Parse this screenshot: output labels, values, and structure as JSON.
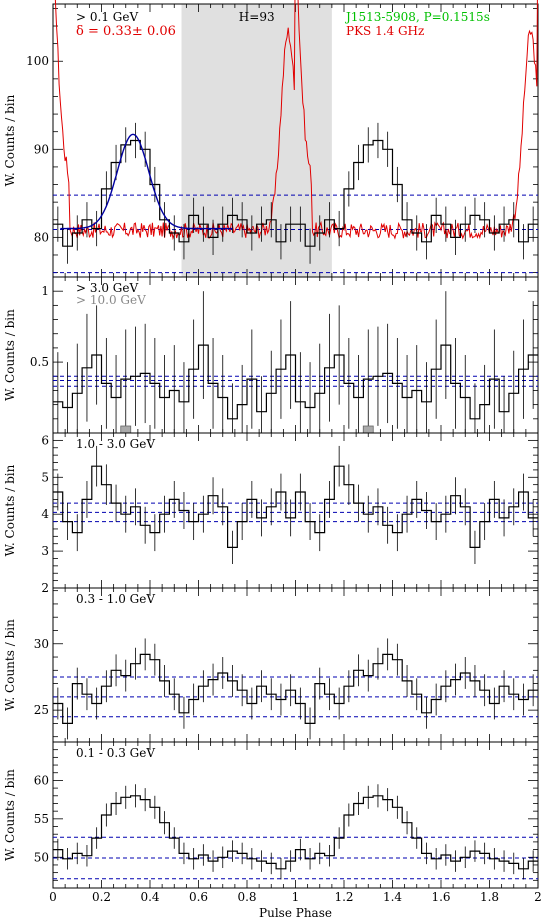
{
  "figure": {
    "x_axis_label": "Pulse Phase",
    "y_axis_label": "W. Counts / bin"
  },
  "chart_data": [
    {
      "type": "line",
      "panel": "top",
      "labels": {
        "energy": "> 0.1 GeV",
        "delta": "δ = 0.33± 0.06",
        "htest": "H=93",
        "pulsar": "J1513-5908, P=0.1515s",
        "radio": "PKS 1.4 GHz"
      },
      "colors": {
        "energy": "#000000",
        "delta": "#e00000",
        "pulsar": "#00c000",
        "radio": "#e00000",
        "fit": "#0000a0",
        "shade": "#e0e0e0",
        "dashed": "#0000b0"
      },
      "xlim": [
        0,
        2
      ],
      "ylim": [
        75.5,
        106.5
      ],
      "yticks": [
        80,
        90,
        100
      ],
      "shaded_range": [
        0.53,
        1.15
      ],
      "dashed_levels": [
        76.0,
        80.9,
        84.8
      ],
      "x": [
        0.0,
        0.04,
        0.08,
        0.12,
        0.16,
        0.2,
        0.24,
        0.28,
        0.32,
        0.36,
        0.4,
        0.44,
        0.48,
        0.52,
        0.56,
        0.6,
        0.64,
        0.68,
        0.72,
        0.76,
        0.8,
        0.84,
        0.88,
        0.92,
        0.96
      ],
      "values": [
        81.5,
        79.0,
        80.5,
        82.0,
        81.0,
        85.5,
        88.5,
        90.5,
        91.0,
        90.0,
        86.0,
        82.0,
        80.5,
        79.5,
        82.5,
        81.5,
        80.0,
        81.5,
        82.5,
        82.0,
        80.5,
        81.5,
        82.0,
        79.5,
        81.5
      ],
      "errors": [
        2,
        2,
        2,
        2,
        2,
        2,
        2,
        2,
        2,
        2,
        2,
        2,
        2,
        2,
        2,
        2,
        2,
        2,
        2,
        2,
        2,
        2,
        2,
        2,
        2
      ],
      "radio": {
        "base": 80.8,
        "noise": 0.9,
        "peak_height": 22.5,
        "peak_center": 0.97,
        "peak_width": 0.03,
        "ramp": 0.05,
        "ramp_height": 21.5
      },
      "fit": {
        "base": 81.0,
        "amplitude": 10.7,
        "center": 0.33,
        "sigma": 0.065,
        "start": 0.03,
        "end": 0.74
      }
    },
    {
      "type": "line",
      "panel": "3 GeV",
      "labels": {
        "energy": "> 3.0 GeV",
        "energy2": "> 10.0 GeV"
      },
      "colors": {
        "energy2": "#888888"
      },
      "xlim": [
        0,
        2
      ],
      "ylim": [
        0,
        1.1
      ],
      "yticks": [
        0.5,
        1
      ],
      "dashed_levels": [
        0.33,
        0.37,
        0.4
      ],
      "x": [
        0.0,
        0.04,
        0.08,
        0.12,
        0.16,
        0.2,
        0.24,
        0.28,
        0.32,
        0.36,
        0.4,
        0.44,
        0.48,
        0.52,
        0.56,
        0.6,
        0.64,
        0.68,
        0.72,
        0.76,
        0.8,
        0.84,
        0.88,
        0.92,
        0.96
      ],
      "values": [
        0.22,
        0.18,
        0.28,
        0.46,
        0.55,
        0.35,
        0.25,
        0.38,
        0.4,
        0.42,
        0.35,
        0.25,
        0.3,
        0.22,
        0.45,
        0.62,
        0.35,
        0.25,
        0.1,
        0.2,
        0.38,
        0.15,
        0.28,
        0.45,
        0.55
      ],
      "errors": [
        0.35,
        0.32,
        0.35,
        0.38,
        0.35,
        0.32,
        0.3,
        0.35,
        0.35,
        0.35,
        0.32,
        0.3,
        0.32,
        0.28,
        0.35,
        0.38,
        0.32,
        0.3,
        0.25,
        0.28,
        0.35,
        0.25,
        0.3,
        0.35,
        0.38
      ],
      "tev_markers": [
        0.3,
        1.3
      ]
    },
    {
      "type": "line",
      "panel": "1-3 GeV",
      "labels": {
        "energy": "1.0 - 3.0 GeV"
      },
      "xlim": [
        0,
        2
      ],
      "ylim": [
        2,
        6.2
      ],
      "yticks": [
        2,
        3,
        4,
        5,
        6
      ],
      "dashed_levels": [
        3.8,
        4.05,
        4.3
      ],
      "x": [
        0.0,
        0.04,
        0.08,
        0.12,
        0.16,
        0.2,
        0.24,
        0.28,
        0.32,
        0.36,
        0.4,
        0.44,
        0.48,
        0.52,
        0.56,
        0.6,
        0.64,
        0.68,
        0.72,
        0.76,
        0.8,
        0.84,
        0.88,
        0.92,
        0.96
      ],
      "values": [
        4.6,
        3.8,
        3.5,
        4.4,
        5.3,
        4.8,
        4.3,
        4.0,
        4.2,
        3.7,
        3.5,
        4.0,
        4.4,
        4.1,
        3.8,
        4.0,
        4.5,
        4.2,
        3.1,
        3.8,
        4.4,
        3.9,
        4.2,
        4.6,
        3.9
      ],
      "errors": [
        0.5,
        0.5,
        0.5,
        0.5,
        0.55,
        0.55,
        0.5,
        0.5,
        0.5,
        0.5,
        0.5,
        0.5,
        0.5,
        0.5,
        0.5,
        0.5,
        0.5,
        0.5,
        0.45,
        0.5,
        0.5,
        0.5,
        0.5,
        0.5,
        0.5
      ]
    },
    {
      "type": "line",
      "panel": "0.3-1 GeV",
      "labels": {
        "energy": "0.3 - 1.0 GeV"
      },
      "xlim": [
        0,
        2
      ],
      "ylim": [
        22.6,
        34.2
      ],
      "yticks": [
        25,
        30
      ],
      "dashed_levels": [
        24.5,
        26.0,
        27.5
      ],
      "x": [
        0.0,
        0.04,
        0.08,
        0.12,
        0.16,
        0.2,
        0.24,
        0.28,
        0.32,
        0.36,
        0.4,
        0.44,
        0.48,
        0.52,
        0.56,
        0.6,
        0.64,
        0.68,
        0.72,
        0.76,
        0.8,
        0.84,
        0.88,
        0.92,
        0.96
      ],
      "values": [
        25.5,
        24.0,
        27.0,
        26.2,
        25.5,
        26.8,
        28.0,
        27.6,
        28.5,
        29.2,
        28.8,
        27.2,
        26.2,
        24.8,
        25.8,
        26.8,
        27.3,
        27.8,
        27.2,
        26.5,
        25.5,
        26.8,
        26.2,
        25.8,
        26.5
      ],
      "errors": [
        1.2,
        1.2,
        1.2,
        1.2,
        1.2,
        1.2,
        1.2,
        1.2,
        1.2,
        1.2,
        1.2,
        1.2,
        1.2,
        1.2,
        1.2,
        1.2,
        1.2,
        1.2,
        1.2,
        1.2,
        1.2,
        1.2,
        1.2,
        1.2,
        1.2
      ]
    },
    {
      "type": "line",
      "panel": "0.1-0.3 GeV",
      "labels": {
        "energy": "0.1 - 0.3 GeV"
      },
      "xlim": [
        0,
        2
      ],
      "ylim": [
        46.0,
        65.0
      ],
      "yticks": [
        50,
        55,
        60
      ],
      "dashed_levels": [
        47.2,
        49.9,
        52.6
      ],
      "x": [
        0.0,
        0.04,
        0.08,
        0.12,
        0.16,
        0.2,
        0.24,
        0.28,
        0.32,
        0.36,
        0.4,
        0.44,
        0.48,
        0.52,
        0.56,
        0.6,
        0.64,
        0.68,
        0.72,
        0.76,
        0.8,
        0.84,
        0.88,
        0.92,
        0.96
      ],
      "values": [
        51.0,
        49.8,
        50.5,
        50.2,
        52.5,
        55.5,
        57.0,
        57.8,
        58.0,
        57.5,
        56.5,
        54.5,
        52.5,
        50.5,
        49.8,
        50.3,
        49.5,
        50.0,
        50.8,
        50.5,
        49.8,
        49.5,
        49.2,
        48.5,
        49.5
      ],
      "errors": [
        1.4,
        1.4,
        1.4,
        1.4,
        1.4,
        1.5,
        1.5,
        1.5,
        1.5,
        1.5,
        1.5,
        1.5,
        1.4,
        1.4,
        1.4,
        1.4,
        1.4,
        1.4,
        1.4,
        1.4,
        1.4,
        1.4,
        1.4,
        1.4,
        1.4
      ]
    }
  ]
}
